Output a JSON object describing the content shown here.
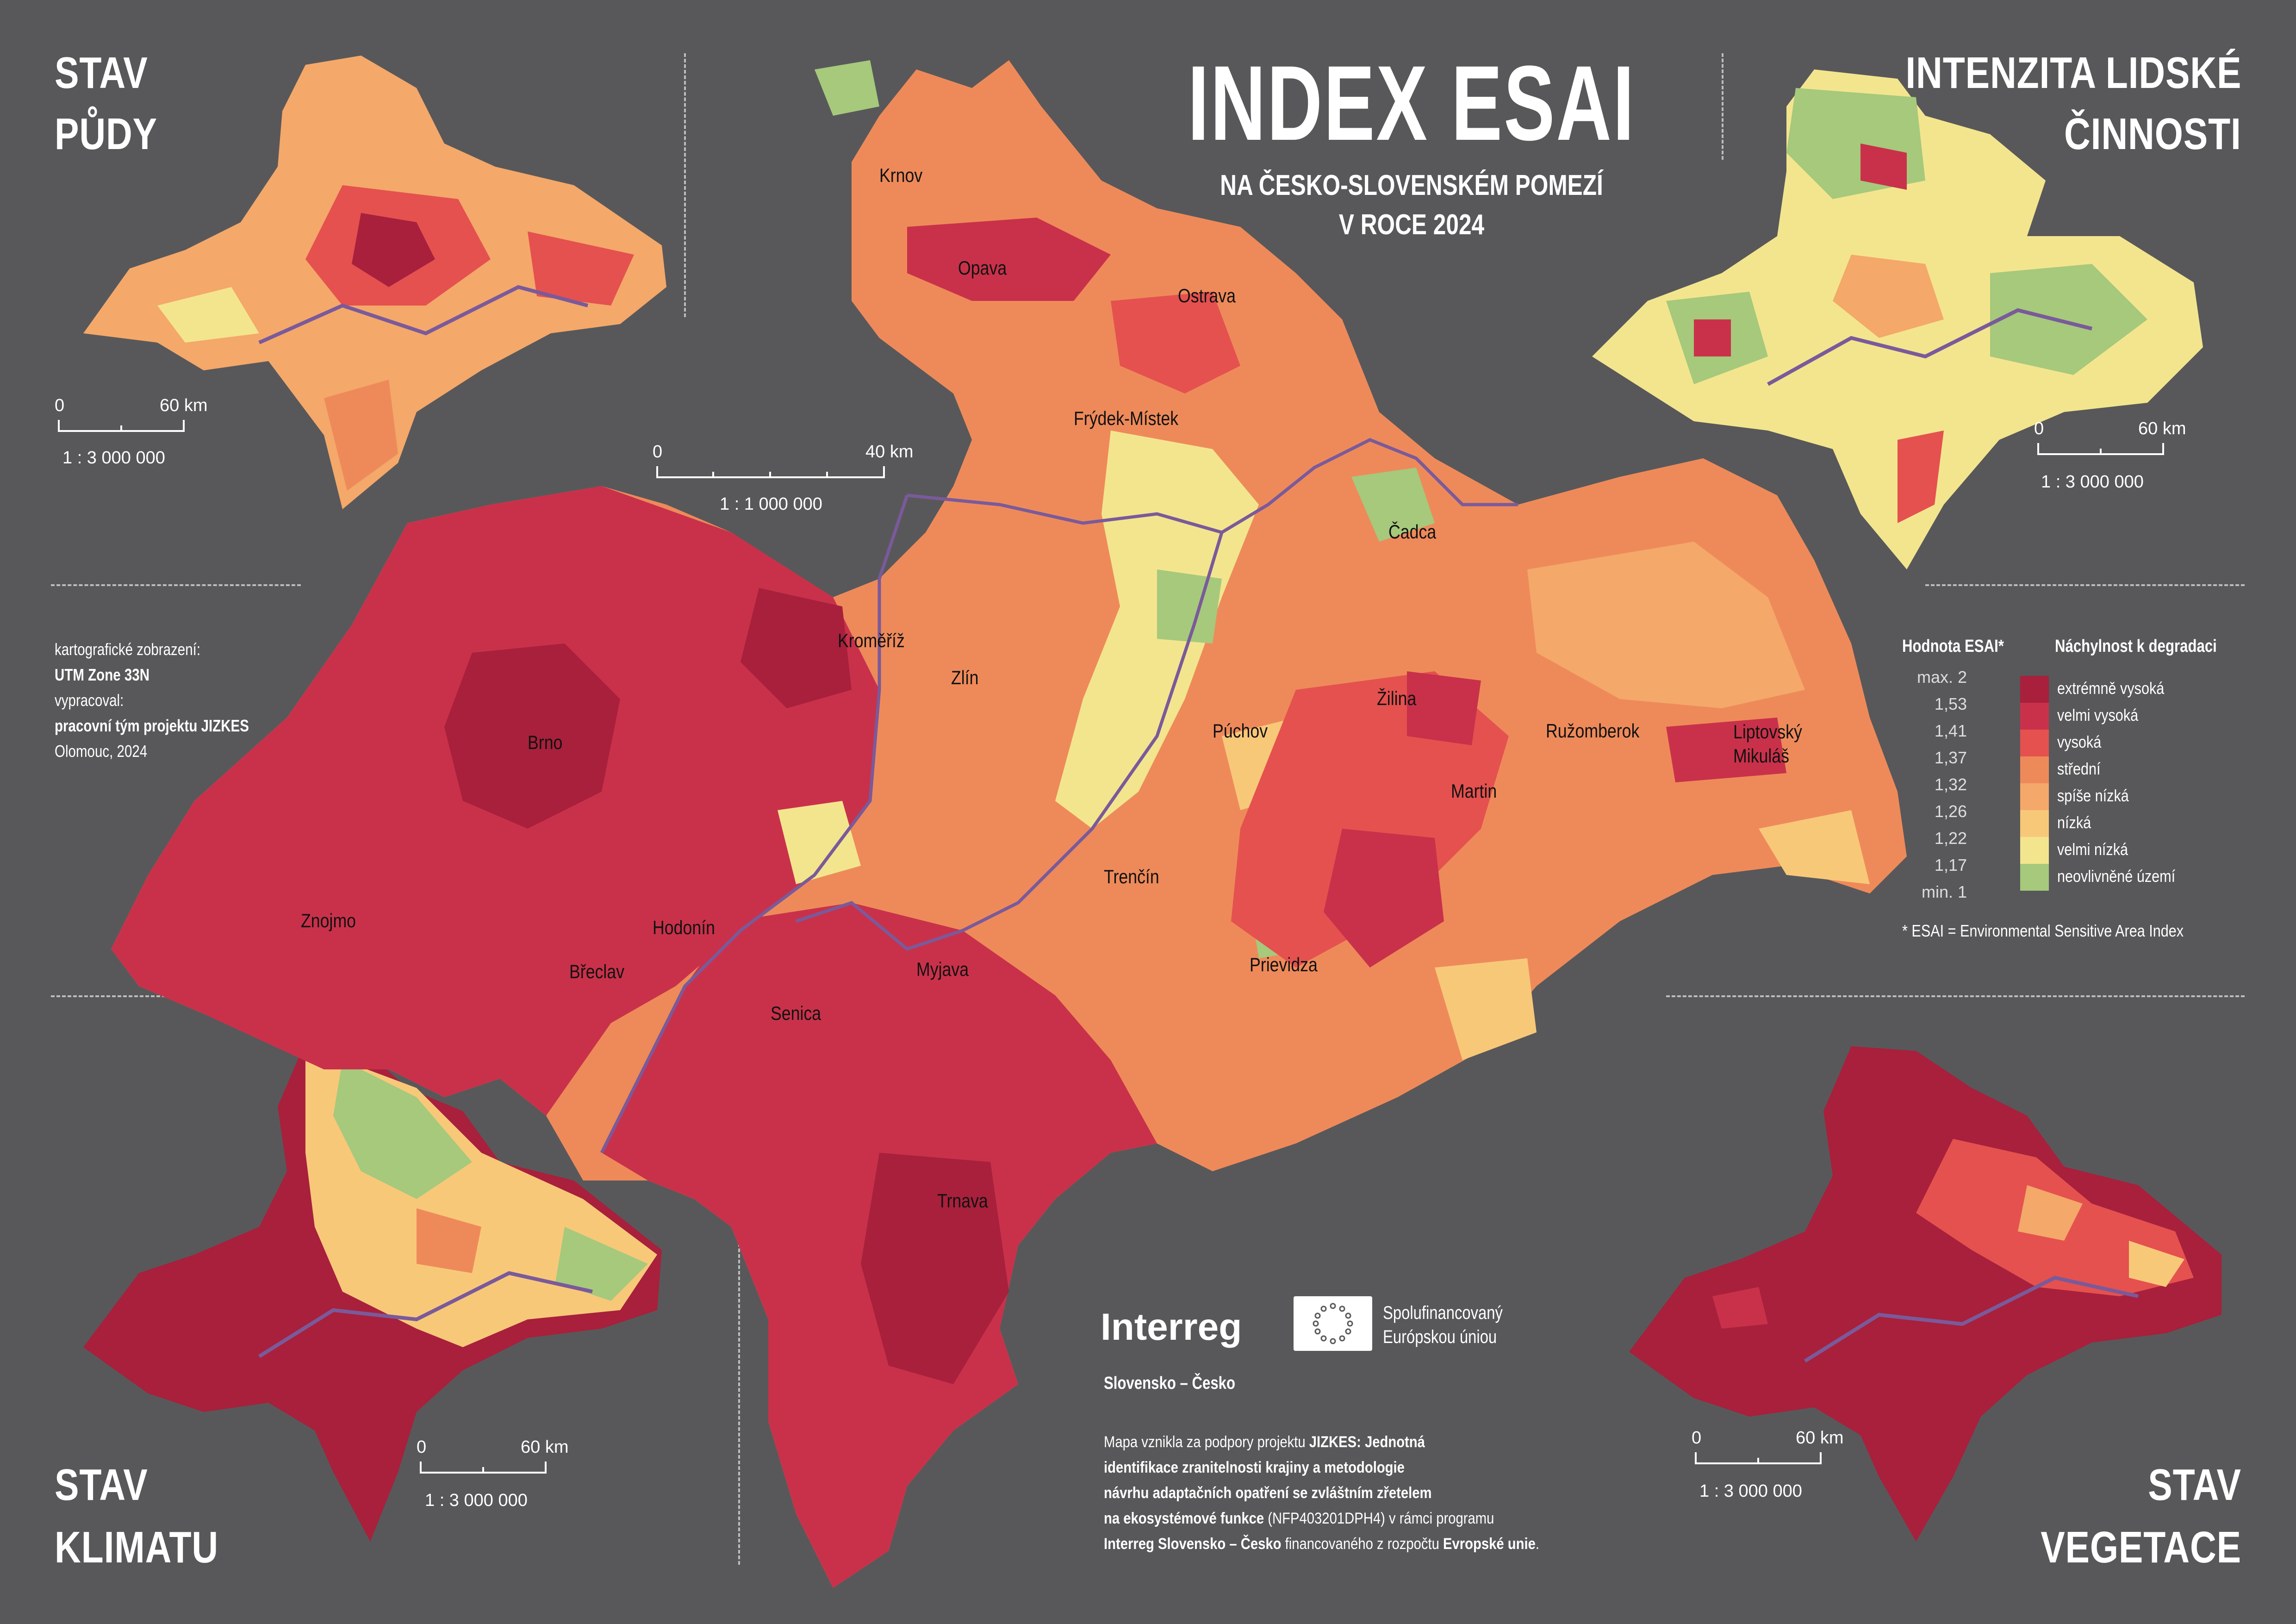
{
  "title": "INDEX ESAI",
  "subtitle_line1": "NA ČESKO-SLOVENSKÉM POMEZÍ",
  "subtitle_line2": "V ROCE 2024",
  "insets": {
    "soil": {
      "title_line1": "STAV",
      "title_line2": "PŮDY",
      "scale_zero": "0",
      "scale_end": "60 km",
      "ratio": "1 : 3 000 000"
    },
    "human": {
      "title_line1": "INTENZITA LIDSKÉ",
      "title_line2": "ČINNOSTI",
      "scale_zero": "0",
      "scale_end": "60 km",
      "ratio": "1 : 3 000 000"
    },
    "climate": {
      "title_line1": "STAV",
      "title_line2": "KLIMATU",
      "scale_zero": "0",
      "scale_end": "60 km",
      "ratio": "1 : 3 000 000"
    },
    "vegetation": {
      "title_line1": "STAV",
      "title_line2": "VEGETACE",
      "scale_zero": "0",
      "scale_end": "60 km",
      "ratio": "1 : 3 000 000"
    }
  },
  "main_scale": {
    "zero": "0",
    "end": "40 km",
    "ratio": "1 : 1 000 000"
  },
  "credits": {
    "line1": "kartografické zobrazení:",
    "line2": "UTM Zone 33N",
    "line3": "vypracoval:",
    "line4": "pracovní tým projektu JIZKES",
    "line5": "Olomouc, 2024"
  },
  "legend": {
    "head_value": "Hodnota ESAI*",
    "head_class": "Náchylnost k degradaci",
    "values": [
      "max. 2",
      "1,53",
      "1,41",
      "1,37",
      "1,32",
      "1,26",
      "1,22",
      "1,17",
      "min. 1"
    ],
    "classes": [
      {
        "label": "extrémně vysoká",
        "color": "#a8203c"
      },
      {
        "label": "velmi vysoká",
        "color": "#c9314a"
      },
      {
        "label": "vysoká",
        "color": "#e4514f"
      },
      {
        "label": "střední",
        "color": "#ee8a5a"
      },
      {
        "label": "spíše nízká",
        "color": "#f4a86a"
      },
      {
        "label": "nízká",
        "color": "#f8c879"
      },
      {
        "label": "velmi nízká",
        "color": "#f3e58e"
      },
      {
        "label": "neovlivněné území",
        "color": "#a6c97c"
      }
    ],
    "footnote": "* ESAI = Environmental Sensitive Area Index"
  },
  "cities": [
    {
      "name": "Krnov"
    },
    {
      "name": "Opava"
    },
    {
      "name": "Ostrava"
    },
    {
      "name": "Frýdek-Místek"
    },
    {
      "name": "Čadca"
    },
    {
      "name": "Kroměříž"
    },
    {
      "name": "Zlín"
    },
    {
      "name": "Žilina"
    },
    {
      "name": "Brno"
    },
    {
      "name": "Púchov"
    },
    {
      "name": "Ružomberok"
    },
    {
      "name": "Liptovský Mikuláš"
    },
    {
      "name": "Martin"
    },
    {
      "name": "Trenčín"
    },
    {
      "name": "Znojmo"
    },
    {
      "name": "Hodonín"
    },
    {
      "name": "Břeclav"
    },
    {
      "name": "Prievidza"
    },
    {
      "name": "Myjava"
    },
    {
      "name": "Senica"
    },
    {
      "name": "Trnava"
    }
  ],
  "logo": {
    "interreg": "Interreg",
    "eu_line1": "Spolufinancovaný",
    "eu_line2": "Európskou úniou",
    "program": "Slovensko – Česko"
  },
  "project_note": {
    "l1a": "Mapa vznikla za podpory projektu ",
    "l1b": "JIZKES: Jednotná",
    "l2": "identifikace zranitelnosti krajiny a metodologie",
    "l3": "návrhu adaptačních opatření se zvláštním zřetelem",
    "l4a": "na ekosystémové funkce",
    "l4b": " (NFP403201DPH4) v rámci programu",
    "l5a": "Interreg Slovensko – Česko",
    "l5b": " financovaného z rozpočtu ",
    "l5c": "Evropské unie",
    "l5d": "."
  }
}
